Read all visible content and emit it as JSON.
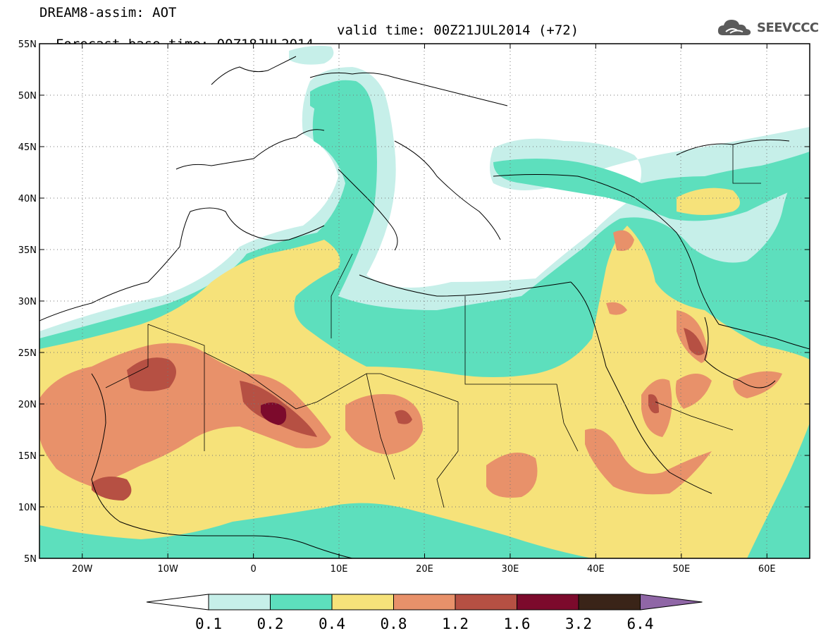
{
  "header": {
    "title_line1": "DREAM8-assim: AOT",
    "title_line2_left": "Forecast base time: 00Z18JUL2014",
    "title_line2_right": "valid time: 00Z21JUL2014 (+72)"
  },
  "logo": {
    "text": "SEEVCCC",
    "icon": "cloud-icon"
  },
  "map": {
    "lon_range": [
      -25,
      65
    ],
    "lat_range": [
      5,
      55
    ],
    "x_ticks": [
      "20W",
      "10W",
      "0",
      "10E",
      "20E",
      "30E",
      "40E",
      "50E",
      "60E"
    ],
    "y_ticks": [
      "55N",
      "50N",
      "45N",
      "40N",
      "35N",
      "30N",
      "25N",
      "20N",
      "15N",
      "10N",
      "5N"
    ],
    "grid": "dotted",
    "field": "aerosol optical thickness"
  },
  "legend": {
    "thresholds": [
      "0.1",
      "0.2",
      "0.4",
      "0.8",
      "1.2",
      "1.6",
      "3.2",
      "6.4"
    ],
    "colors": [
      "#ffffff",
      "#c6efe9",
      "#5ddfbd",
      "#f6e27a",
      "#e8916a",
      "#b65043",
      "#7c0a2c",
      "#3a2418",
      "#8f66a6"
    ]
  },
  "colors": {
    "c0": "#c6efe9",
    "c1": "#5ddfbd",
    "c2": "#f6e27a",
    "c3": "#e8916a",
    "c4": "#b65043",
    "c5": "#7c0a2c"
  }
}
